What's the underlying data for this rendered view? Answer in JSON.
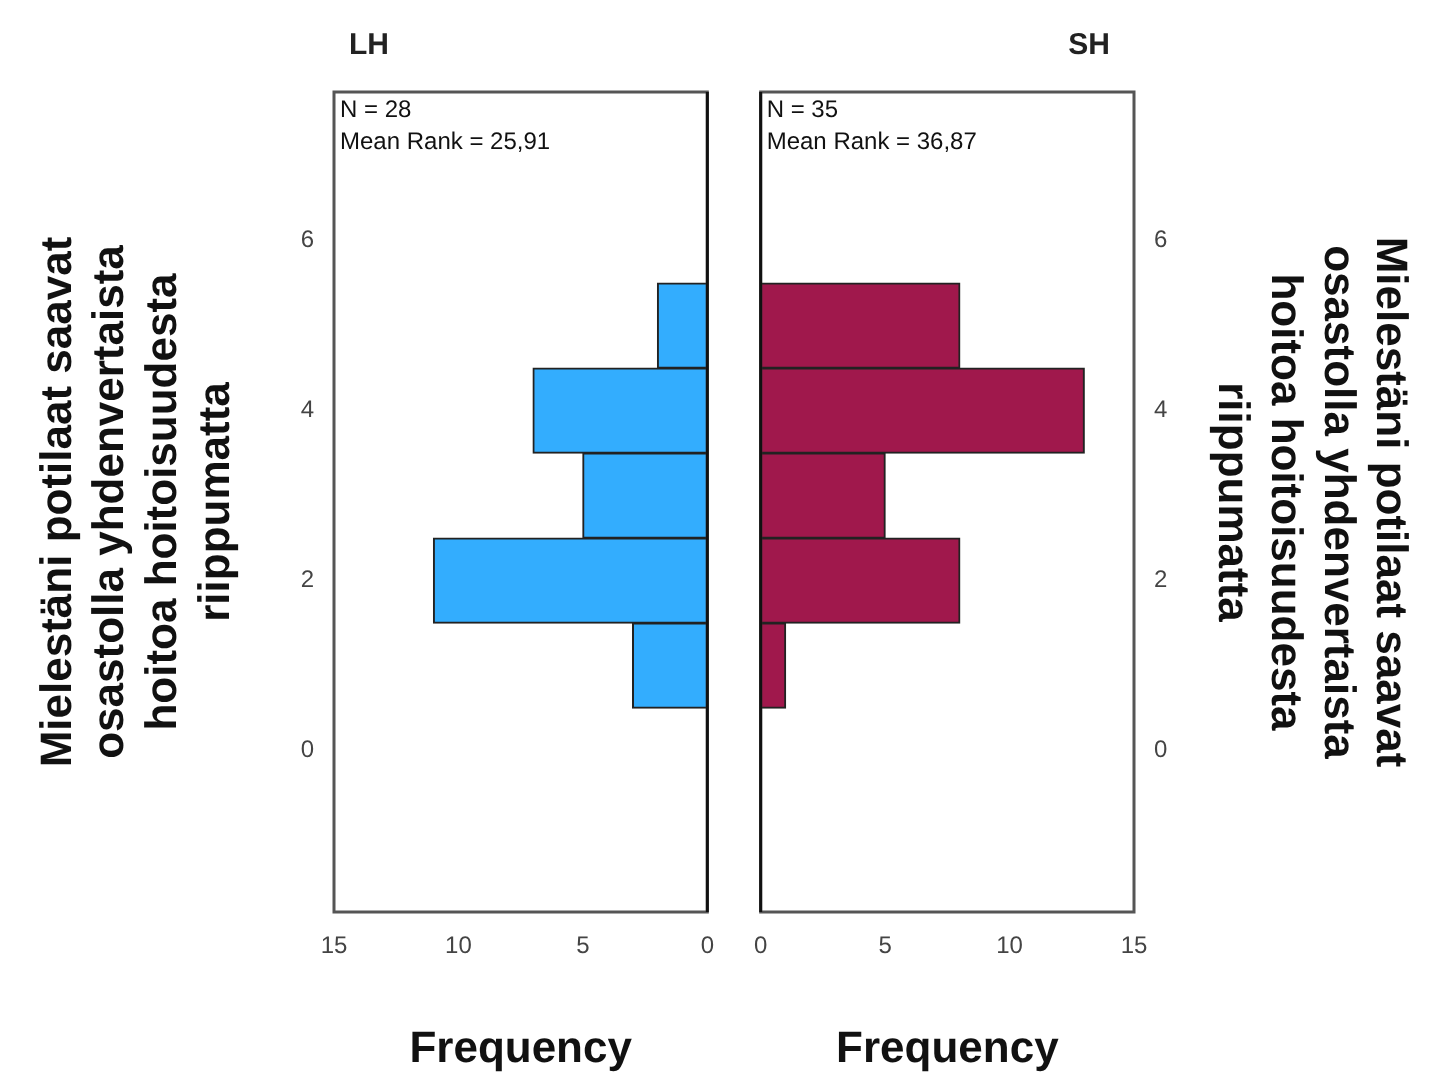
{
  "chart_data": [
    {
      "type": "histogram",
      "orientation": "horizontal",
      "title": "LH",
      "xlabel": "Frequency",
      "ylabel": "Mielestäni potilaat saavat\nosastolla yhdenvertaista\nhoitoa hoitoisuudesta\nriippumatta",
      "bins": [
        0.5,
        1.5,
        2.5,
        3.5,
        4.5,
        5.5
      ],
      "values": [
        3,
        11,
        5,
        7,
        2
      ],
      "color": "#33adfe",
      "xlim": [
        15,
        0
      ],
      "xticks": [
        15,
        10,
        5,
        0
      ],
      "ylim": [
        -1.9,
        7.75
      ],
      "yticks": [
        0,
        2,
        4,
        6
      ],
      "annotations": [
        "N = 28",
        "Mean Rank = 25,91"
      ]
    },
    {
      "type": "histogram",
      "orientation": "horizontal",
      "title": "SH",
      "xlabel": "Frequency",
      "ylabel": "Mielestäni potilaat saavat\nosastolla yhdenvertaista\nhoitoa hoitoisuudesta\nriippumatta",
      "bins": [
        0.5,
        1.5,
        2.5,
        3.5,
        4.5,
        5.5
      ],
      "values": [
        1,
        8,
        5,
        13,
        8
      ],
      "color": "#a0184c",
      "xlim": [
        0,
        15
      ],
      "xticks": [
        0,
        5,
        10,
        15
      ],
      "ylim": [
        -1.9,
        7.75
      ],
      "yticks": [
        0,
        2,
        4,
        6
      ],
      "annotations": [
        "N = 35",
        "Mean Rank = 36,87"
      ]
    }
  ]
}
